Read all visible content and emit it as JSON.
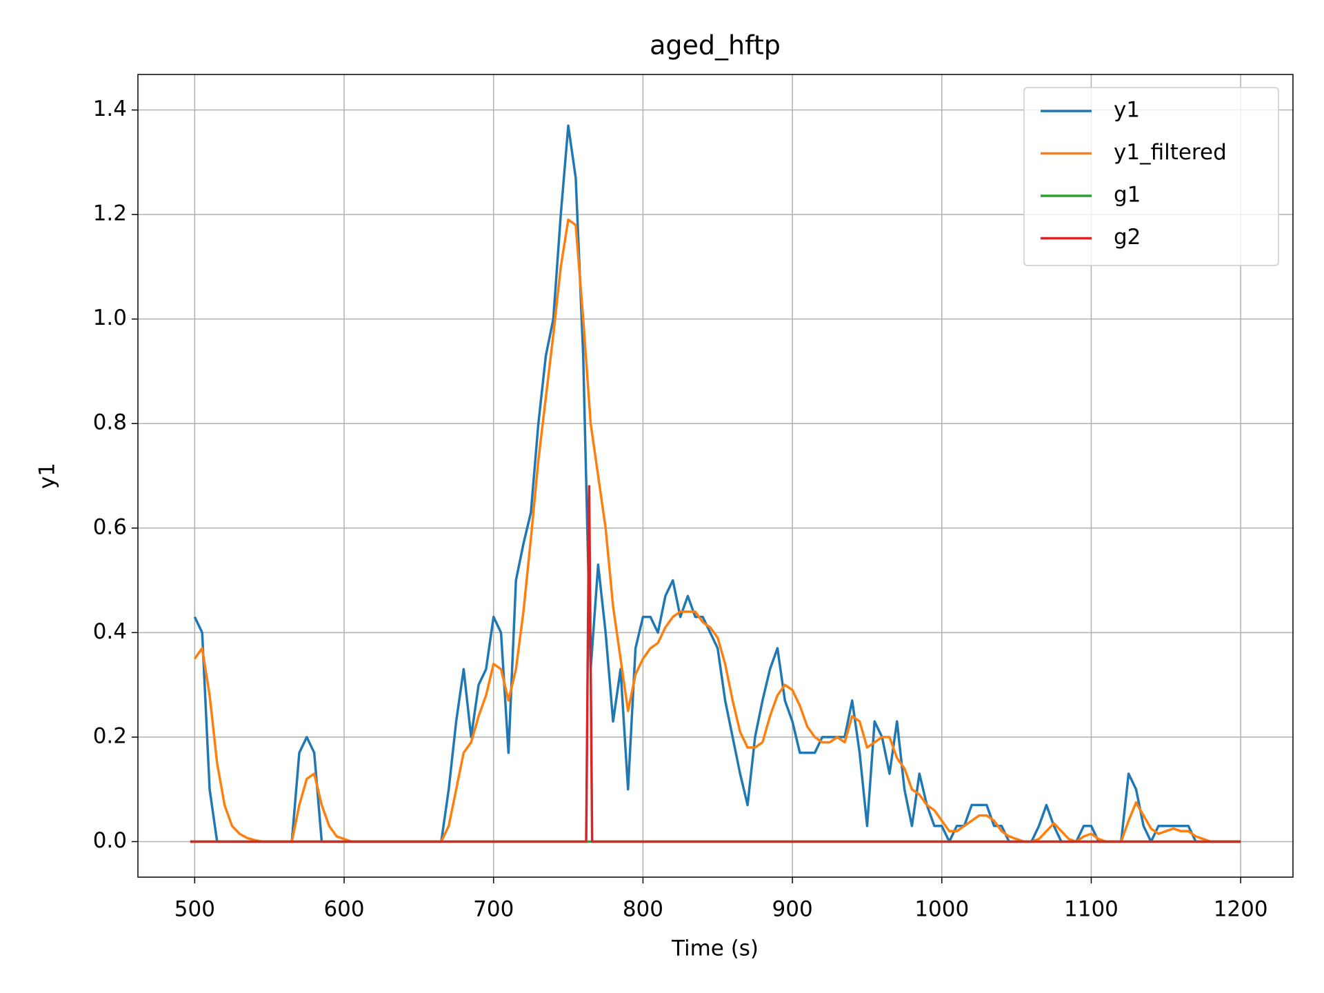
{
  "chart_data": {
    "type": "line",
    "title": "aged_hftp",
    "xlabel": "Time (s)",
    "ylabel": "y1",
    "x": [
      500,
      505,
      510,
      515,
      520,
      525,
      530,
      535,
      540,
      545,
      550,
      555,
      560,
      565,
      570,
      575,
      580,
      585,
      590,
      595,
      600,
      605,
      610,
      615,
      620,
      625,
      630,
      635,
      640,
      645,
      650,
      655,
      660,
      665,
      670,
      675,
      680,
      685,
      690,
      695,
      700,
      705,
      710,
      715,
      720,
      725,
      730,
      735,
      740,
      745,
      750,
      755,
      760,
      765,
      770,
      775,
      780,
      785,
      790,
      795,
      800,
      805,
      810,
      815,
      820,
      825,
      830,
      835,
      840,
      845,
      850,
      855,
      860,
      865,
      870,
      875,
      880,
      885,
      890,
      895,
      900,
      905,
      910,
      915,
      920,
      925,
      930,
      935,
      940,
      945,
      950,
      955,
      960,
      965,
      970,
      975,
      980,
      985,
      990,
      995,
      1000,
      1005,
      1010,
      1015,
      1020,
      1025,
      1030,
      1035,
      1040,
      1045,
      1050,
      1055,
      1060,
      1065,
      1070,
      1075,
      1080,
      1085,
      1090,
      1095,
      1100,
      1105,
      1110,
      1115,
      1120,
      1125,
      1130,
      1135,
      1140,
      1145,
      1150,
      1155,
      1160,
      1165,
      1170,
      1175,
      1180,
      1185,
      1190,
      1195,
      1200
    ],
    "series": [
      {
        "name": "y1",
        "color": "#1f77b4",
        "values": [
          0.43,
          0.4,
          0.1,
          0,
          0,
          0,
          0,
          0,
          0,
          0,
          0,
          0,
          0,
          0,
          0.17,
          0.2,
          0.17,
          0,
          0,
          0,
          0,
          0,
          0,
          0,
          0,
          0,
          0,
          0,
          0,
          0,
          0,
          0,
          0,
          0,
          0.1,
          0.23,
          0.33,
          0.2,
          0.3,
          0.33,
          0.43,
          0.4,
          0.17,
          0.5,
          0.57,
          0.63,
          0.8,
          0.93,
          1.0,
          1.2,
          1.37,
          1.27,
          0.93,
          0.33,
          0.53,
          0.4,
          0.23,
          0.33,
          0.1,
          0.37,
          0.43,
          0.43,
          0.4,
          0.47,
          0.5,
          0.43,
          0.47,
          0.43,
          0.43,
          0.4,
          0.37,
          0.27,
          0.2,
          0.13,
          0.07,
          0.2,
          0.27,
          0.33,
          0.37,
          0.27,
          0.23,
          0.17,
          0.17,
          0.17,
          0.2,
          0.2,
          0.2,
          0.2,
          0.27,
          0.17,
          0.03,
          0.23,
          0.2,
          0.13,
          0.23,
          0.1,
          0.03,
          0.13,
          0.07,
          0.03,
          0.03,
          0,
          0.03,
          0.03,
          0.07,
          0.07,
          0.07,
          0.03,
          0.03,
          0,
          0,
          0,
          0,
          0.03,
          0.07,
          0.03,
          0,
          0,
          0,
          0.03,
          0.03,
          0,
          0,
          0,
          0,
          0.13,
          0.1,
          0.03,
          0,
          0.03,
          0.03,
          0.03,
          0.03,
          0.03,
          0,
          0,
          0,
          0,
          0,
          0,
          0
        ]
      },
      {
        "name": "y1_filtered",
        "color": "#ff7f0e",
        "values": [
          0.35,
          0.37,
          0.28,
          0.15,
          0.07,
          0.03,
          0.015,
          0.007,
          0.003,
          0,
          0,
          0,
          0,
          0,
          0.07,
          0.12,
          0.13,
          0.07,
          0.03,
          0.01,
          0.005,
          0,
          0,
          0,
          0,
          0,
          0,
          0,
          0,
          0,
          0,
          0,
          0,
          0,
          0.03,
          0.1,
          0.17,
          0.19,
          0.24,
          0.28,
          0.34,
          0.33,
          0.27,
          0.33,
          0.44,
          0.58,
          0.73,
          0.85,
          0.97,
          1.1,
          1.19,
          1.18,
          1.0,
          0.8,
          0.7,
          0.6,
          0.45,
          0.35,
          0.25,
          0.32,
          0.35,
          0.37,
          0.38,
          0.41,
          0.43,
          0.44,
          0.44,
          0.44,
          0.42,
          0.41,
          0.39,
          0.34,
          0.27,
          0.21,
          0.18,
          0.18,
          0.19,
          0.24,
          0.28,
          0.3,
          0.29,
          0.26,
          0.22,
          0.2,
          0.19,
          0.19,
          0.2,
          0.19,
          0.24,
          0.23,
          0.18,
          0.19,
          0.2,
          0.2,
          0.16,
          0.14,
          0.1,
          0.09,
          0.07,
          0.06,
          0.04,
          0.02,
          0.02,
          0.03,
          0.04,
          0.05,
          0.05,
          0.04,
          0.02,
          0.01,
          0.005,
          0,
          0,
          0.005,
          0.02,
          0.035,
          0.02,
          0.005,
          0,
          0.01,
          0.015,
          0.005,
          0,
          0,
          0,
          0.04,
          0.075,
          0.05,
          0.025,
          0.015,
          0.02,
          0.025,
          0.02,
          0.02,
          0.01,
          0.005,
          0,
          0,
          0,
          0,
          0
        ]
      },
      {
        "name": "g1",
        "color": "#2ca02c",
        "x": [
          497,
          1200
        ],
        "values": [
          0,
          0
        ]
      },
      {
        "name": "g2",
        "color": "#d62728",
        "x": [
          497,
          762,
          764,
          766,
          1200
        ],
        "values": [
          0,
          0,
          0.68,
          0,
          0
        ]
      }
    ],
    "xlim": [
      462,
      1235
    ],
    "ylim": [
      -0.068,
      1.468
    ],
    "xticks": [
      500,
      600,
      700,
      800,
      900,
      1000,
      1100,
      1200
    ],
    "yticks": [
      {
        "value": 0,
        "label": "0.0"
      },
      0.2,
      0.4,
      0.6,
      0.8,
      {
        "value": 1,
        "label": "1.0"
      },
      1.2,
      1.4
    ],
    "grid": true,
    "legend": "upper right"
  }
}
